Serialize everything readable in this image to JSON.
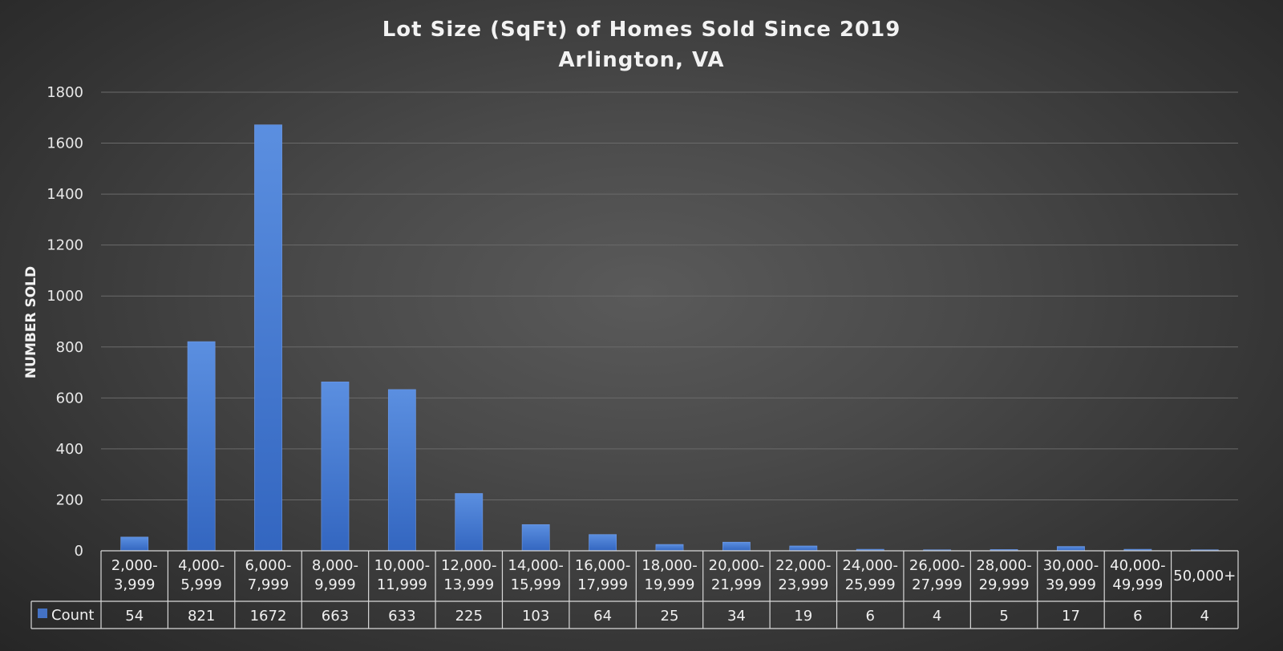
{
  "chart_data": {
    "type": "bar",
    "title": "Lot Size (SqFt) of Homes Sold Since 2019",
    "subtitle": "Arlington, VA",
    "ylabel": "NUMBER SOLD",
    "xlabel": "",
    "ylim": [
      0,
      1800
    ],
    "yticks": [
      "0",
      "200",
      "400",
      "600",
      "800",
      "1000",
      "1200",
      "1400",
      "1600",
      "1800"
    ],
    "grid": true,
    "legend_placement": "data-table",
    "categories": [
      [
        "2,000-",
        "3,999"
      ],
      [
        "4,000-",
        "5,999"
      ],
      [
        "6,000-",
        "7,999"
      ],
      [
        "8,000-",
        "9,999"
      ],
      [
        "10,000-",
        "11,999"
      ],
      [
        "12,000-",
        "13,999"
      ],
      [
        "14,000-",
        "15,999"
      ],
      [
        "16,000-",
        "17,999"
      ],
      [
        "18,000-",
        "19,999"
      ],
      [
        "20,000-",
        "21,999"
      ],
      [
        "22,000-",
        "23,999"
      ],
      [
        "24,000-",
        "25,999"
      ],
      [
        "26,000-",
        "27,999"
      ],
      [
        "28,000-",
        "29,999"
      ],
      [
        "30,000-",
        "39,999"
      ],
      [
        "40,000-",
        "49,999"
      ],
      [
        "50,000+"
      ]
    ],
    "series": [
      {
        "name": "Count",
        "color": "#4472c4",
        "values": [
          54,
          821,
          1672,
          663,
          633,
          225,
          103,
          64,
          25,
          34,
          19,
          6,
          4,
          5,
          17,
          6,
          4
        ]
      }
    ]
  }
}
